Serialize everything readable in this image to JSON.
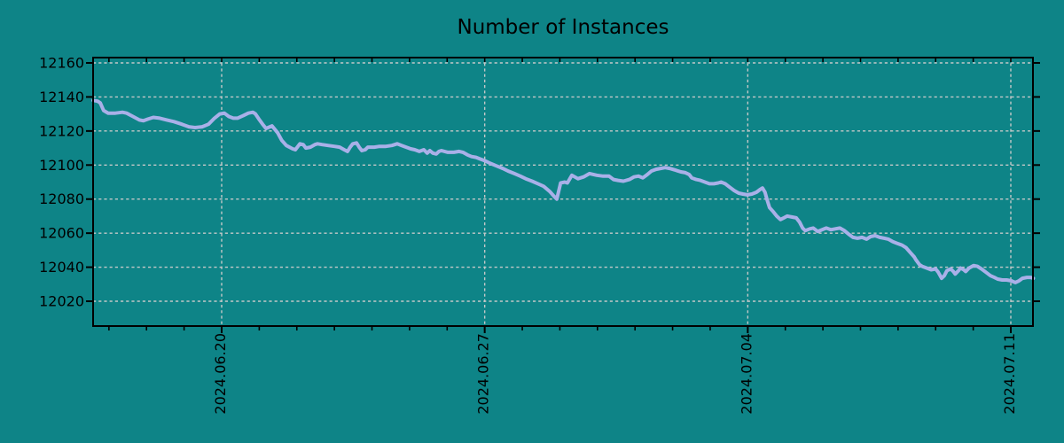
{
  "title": "Number of Instances",
  "colors": {
    "background": "#0e8487",
    "line": "#a9b0e8",
    "grid": "#c4c8c8",
    "frame": "#000000",
    "text": "#000000"
  },
  "chart_data": {
    "type": "line",
    "title": "Number of Instances",
    "legend": "none",
    "grid": "dashed",
    "x_axis": {
      "day_zero_date": "2024.06.16",
      "tick_labels": [
        "2024.06.20",
        "2024.06.27",
        "2024.07.04",
        "2024.07.11"
      ],
      "tick_day_offsets": [
        4,
        11,
        18,
        25
      ],
      "minor_tick_interval_days": 1,
      "minor_tick_days": [
        1,
        2,
        3,
        4,
        5,
        6,
        7,
        8,
        9,
        10,
        11,
        12,
        13,
        14,
        15,
        16,
        17,
        18,
        19,
        20,
        21,
        22,
        23,
        24,
        25
      ],
      "domain_days": [
        0.58,
        25.6
      ],
      "label_rotation_deg": -90
    },
    "y_axis": {
      "tick_values": [
        12020,
        12040,
        12060,
        12080,
        12100,
        12120,
        12140,
        12160
      ],
      "range": [
        12005,
        12163
      ],
      "label": ""
    },
    "series": [
      {
        "name": "instances",
        "color": "#a9b0e8",
        "points": [
          [
            0.58,
            12138
          ],
          [
            0.7,
            12137.5
          ],
          [
            0.77,
            12136.5
          ],
          [
            0.86,
            12132
          ],
          [
            0.98,
            12130.5
          ],
          [
            1.17,
            12130.5
          ],
          [
            1.36,
            12131
          ],
          [
            1.47,
            12130.5
          ],
          [
            1.64,
            12128.5
          ],
          [
            1.81,
            12126.5
          ],
          [
            1.92,
            12126
          ],
          [
            2.04,
            12127
          ],
          [
            2.18,
            12128
          ],
          [
            2.35,
            12127.5
          ],
          [
            2.54,
            12126.5
          ],
          [
            2.73,
            12125.5
          ],
          [
            2.94,
            12124
          ],
          [
            3.13,
            12122.5
          ],
          [
            3.29,
            12122
          ],
          [
            3.48,
            12122.5
          ],
          [
            3.65,
            12124
          ],
          [
            3.81,
            12127.5
          ],
          [
            3.95,
            12130
          ],
          [
            4.07,
            12130.5
          ],
          [
            4.19,
            12128.5
          ],
          [
            4.31,
            12127.5
          ],
          [
            4.42,
            12127.5
          ],
          [
            4.57,
            12129
          ],
          [
            4.71,
            12130.5
          ],
          [
            4.83,
            12131
          ],
          [
            4.9,
            12130
          ],
          [
            4.99,
            12127
          ],
          [
            5.09,
            12124
          ],
          [
            5.18,
            12121.5
          ],
          [
            5.34,
            12123
          ],
          [
            5.49,
            12119
          ],
          [
            5.6,
            12114.5
          ],
          [
            5.72,
            12111.5
          ],
          [
            5.89,
            12109.5
          ],
          [
            5.96,
            12109
          ],
          [
            6.08,
            12112.5
          ],
          [
            6.17,
            12112
          ],
          [
            6.24,
            12110
          ],
          [
            6.36,
            12110.5
          ],
          [
            6.48,
            12112
          ],
          [
            6.55,
            12112.5
          ],
          [
            6.67,
            12112
          ],
          [
            6.83,
            12111.5
          ],
          [
            7.0,
            12111
          ],
          [
            7.14,
            12110.5
          ],
          [
            7.26,
            12109
          ],
          [
            7.35,
            12108
          ],
          [
            7.42,
            12110.5
          ],
          [
            7.49,
            12112.5
          ],
          [
            7.59,
            12113
          ],
          [
            7.66,
            12110.5
          ],
          [
            7.73,
            12108.5
          ],
          [
            7.82,
            12109
          ],
          [
            7.89,
            12110.5
          ],
          [
            8.06,
            12110.5
          ],
          [
            8.2,
            12111
          ],
          [
            8.37,
            12111
          ],
          [
            8.53,
            12111.5
          ],
          [
            8.67,
            12112.5
          ],
          [
            8.79,
            12111.5
          ],
          [
            8.91,
            12110.5
          ],
          [
            9.03,
            12109.5
          ],
          [
            9.14,
            12109
          ],
          [
            9.26,
            12108
          ],
          [
            9.38,
            12109
          ],
          [
            9.47,
            12107
          ],
          [
            9.54,
            12108.5
          ],
          [
            9.62,
            12107
          ],
          [
            9.71,
            12106.5
          ],
          [
            9.78,
            12108
          ],
          [
            9.85,
            12108.5
          ],
          [
            10.02,
            12107.5
          ],
          [
            10.18,
            12107.5
          ],
          [
            10.32,
            12108
          ],
          [
            10.42,
            12107.5
          ],
          [
            10.54,
            12106
          ],
          [
            10.65,
            12105
          ],
          [
            10.77,
            12104.5
          ],
          [
            10.89,
            12103.5
          ],
          [
            11.01,
            12102.5
          ],
          [
            11.15,
            12101
          ],
          [
            11.31,
            12099.5
          ],
          [
            11.48,
            12098
          ],
          [
            11.62,
            12096.5
          ],
          [
            11.79,
            12095
          ],
          [
            11.95,
            12093.5
          ],
          [
            12.09,
            12092
          ],
          [
            12.26,
            12090.5
          ],
          [
            12.42,
            12089
          ],
          [
            12.57,
            12087.5
          ],
          [
            12.73,
            12084.5
          ],
          [
            12.85,
            12081.5
          ],
          [
            12.92,
            12080
          ],
          [
            13.02,
            12089.5
          ],
          [
            13.13,
            12090
          ],
          [
            13.2,
            12089.5
          ],
          [
            13.32,
            12094
          ],
          [
            13.48,
            12092
          ],
          [
            13.63,
            12093
          ],
          [
            13.79,
            12095
          ],
          [
            13.98,
            12094
          ],
          [
            14.15,
            12093.5
          ],
          [
            14.31,
            12093.5
          ],
          [
            14.43,
            12091.5
          ],
          [
            14.55,
            12091
          ],
          [
            14.69,
            12090.5
          ],
          [
            14.85,
            12091.5
          ],
          [
            14.97,
            12093
          ],
          [
            15.09,
            12093.5
          ],
          [
            15.21,
            12092.5
          ],
          [
            15.33,
            12094.5
          ],
          [
            15.44,
            12096.5
          ],
          [
            15.56,
            12097.5
          ],
          [
            15.68,
            12098
          ],
          [
            15.8,
            12098.5
          ],
          [
            15.92,
            12098
          ],
          [
            16.08,
            12097
          ],
          [
            16.22,
            12096
          ],
          [
            16.34,
            12095.5
          ],
          [
            16.44,
            12094.5
          ],
          [
            16.51,
            12092.5
          ],
          [
            16.63,
            12091.5
          ],
          [
            16.74,
            12091
          ],
          [
            16.86,
            12090
          ],
          [
            16.98,
            12089
          ],
          [
            17.1,
            12089
          ],
          [
            17.21,
            12089.5
          ],
          [
            17.29,
            12090
          ],
          [
            17.4,
            12089
          ],
          [
            17.52,
            12087
          ],
          [
            17.64,
            12085
          ],
          [
            17.76,
            12083.5
          ],
          [
            17.87,
            12083
          ],
          [
            17.99,
            12082.5
          ],
          [
            18.11,
            12083
          ],
          [
            18.23,
            12084
          ],
          [
            18.32,
            12085.5
          ],
          [
            18.39,
            12086.5
          ],
          [
            18.46,
            12084
          ],
          [
            18.51,
            12080
          ],
          [
            18.58,
            12075
          ],
          [
            18.68,
            12072.5
          ],
          [
            18.77,
            12070
          ],
          [
            18.87,
            12068
          ],
          [
            18.96,
            12069
          ],
          [
            19.05,
            12070
          ],
          [
            19.17,
            12069.5
          ],
          [
            19.29,
            12069
          ],
          [
            19.38,
            12066.5
          ],
          [
            19.46,
            12063
          ],
          [
            19.53,
            12061.5
          ],
          [
            19.65,
            12062.5
          ],
          [
            19.74,
            12063
          ],
          [
            19.86,
            12061
          ],
          [
            19.98,
            12062
          ],
          [
            20.09,
            12063
          ],
          [
            20.21,
            12062
          ],
          [
            20.33,
            12062.5
          ],
          [
            20.45,
            12063
          ],
          [
            20.57,
            12061.5
          ],
          [
            20.68,
            12059.5
          ],
          [
            20.8,
            12057.5
          ],
          [
            20.92,
            12057
          ],
          [
            21.04,
            12057.5
          ],
          [
            21.16,
            12056.5
          ],
          [
            21.27,
            12058
          ],
          [
            21.39,
            12058.5
          ],
          [
            21.51,
            12057.5
          ],
          [
            21.63,
            12057
          ],
          [
            21.74,
            12056.5
          ],
          [
            21.86,
            12055
          ],
          [
            21.98,
            12054
          ],
          [
            22.1,
            12053
          ],
          [
            22.21,
            12051.5
          ],
          [
            22.33,
            12048.5
          ],
          [
            22.43,
            12046
          ],
          [
            22.47,
            12044.5
          ],
          [
            22.57,
            12041.5
          ],
          [
            22.64,
            12040.5
          ],
          [
            22.76,
            12039.5
          ],
          [
            22.88,
            12038.5
          ],
          [
            23.0,
            12039
          ],
          [
            23.07,
            12037
          ],
          [
            23.16,
            12033.5
          ],
          [
            23.23,
            12035
          ],
          [
            23.3,
            12038
          ],
          [
            23.4,
            12039
          ],
          [
            23.47,
            12037.5
          ],
          [
            23.52,
            12036
          ],
          [
            23.61,
            12038
          ],
          [
            23.66,
            12039.5
          ],
          [
            23.75,
            12038.5
          ],
          [
            23.8,
            12037.5
          ],
          [
            23.89,
            12039.5
          ],
          [
            24.01,
            12041
          ],
          [
            24.11,
            12040.5
          ],
          [
            24.22,
            12039
          ],
          [
            24.34,
            12037
          ],
          [
            24.46,
            12035
          ],
          [
            24.56,
            12034
          ],
          [
            24.65,
            12033
          ],
          [
            24.77,
            12032.5
          ],
          [
            24.89,
            12032.5
          ],
          [
            25.01,
            12032
          ],
          [
            25.12,
            12031
          ],
          [
            25.22,
            12032
          ],
          [
            25.31,
            12033.5
          ],
          [
            25.43,
            12034
          ],
          [
            25.53,
            12034
          ],
          [
            25.6,
            12033.5
          ]
        ]
      }
    ]
  }
}
